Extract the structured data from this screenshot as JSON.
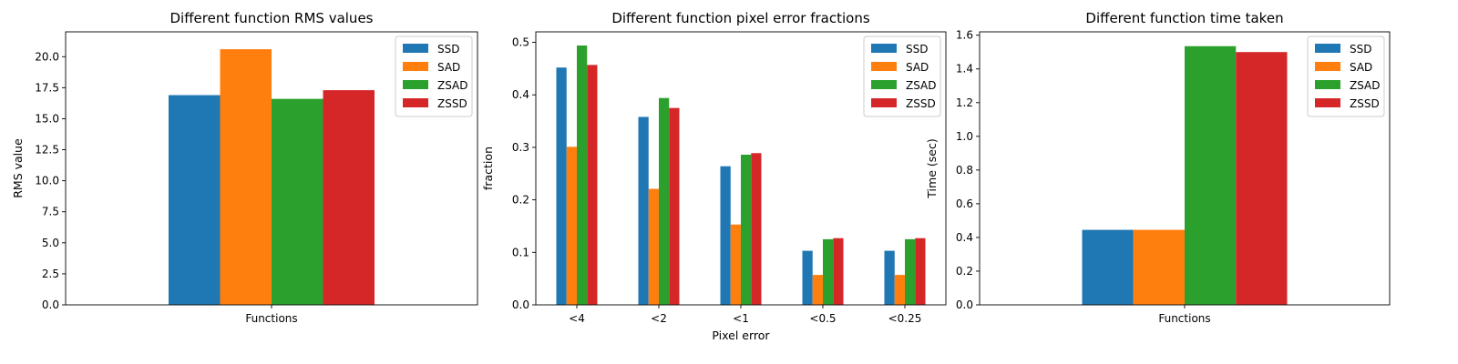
{
  "colors": {
    "SSD": "#1f77b4",
    "SAD": "#ff7f0e",
    "ZSAD": "#2ca02c",
    "ZSSD": "#d62728"
  },
  "chart_data": [
    {
      "type": "bar",
      "title": "Different function RMS values",
      "xlabel": "",
      "ylabel": "RMS value",
      "categories": [
        "Functions"
      ],
      "ylim": [
        0,
        22
      ],
      "yticks": [
        "0.0",
        "2.5",
        "5.0",
        "7.5",
        "10.0",
        "12.5",
        "15.0",
        "17.5",
        "20.0"
      ],
      "legend": "top-right",
      "grid": false,
      "series": [
        {
          "name": "SSD",
          "values": [
            16.9
          ]
        },
        {
          "name": "SAD",
          "values": [
            20.6
          ]
        },
        {
          "name": "ZSAD",
          "values": [
            16.6
          ]
        },
        {
          "name": "ZSSD",
          "values": [
            17.3
          ]
        }
      ]
    },
    {
      "type": "bar",
      "title": "Different function pixel error fractions",
      "xlabel": "Pixel error",
      "ylabel": "fraction",
      "categories": [
        "<4",
        "<2",
        "<1",
        "<0.5",
        "<0.25"
      ],
      "ylim": [
        0,
        0.52
      ],
      "yticks": [
        "0.0",
        "0.1",
        "0.2",
        "0.3",
        "0.4",
        "0.5"
      ],
      "legend": "top-right",
      "grid": false,
      "series": [
        {
          "name": "SSD",
          "values": [
            0.452,
            0.358,
            0.264,
            0.103,
            0.103
          ]
        },
        {
          "name": "SAD",
          "values": [
            0.301,
            0.221,
            0.153,
            0.057,
            0.057
          ]
        },
        {
          "name": "ZSAD",
          "values": [
            0.494,
            0.394,
            0.286,
            0.125,
            0.125
          ]
        },
        {
          "name": "ZSSD",
          "values": [
            0.457,
            0.375,
            0.289,
            0.127,
            0.127
          ]
        }
      ]
    },
    {
      "type": "bar",
      "title": "Different function time taken",
      "xlabel": "",
      "ylabel": "Time (sec)",
      "categories": [
        "Functions"
      ],
      "ylim": [
        0,
        1.62
      ],
      "yticks": [
        "0.0",
        "0.2",
        "0.4",
        "0.6",
        "0.8",
        "1.0",
        "1.2",
        "1.4",
        "1.6"
      ],
      "legend": "top-right",
      "grid": false,
      "series": [
        {
          "name": "SSD",
          "values": [
            0.445
          ]
        },
        {
          "name": "SAD",
          "values": [
            0.445
          ]
        },
        {
          "name": "ZSAD",
          "values": [
            1.535
          ]
        },
        {
          "name": "ZSSD",
          "values": [
            1.5
          ]
        }
      ]
    }
  ]
}
